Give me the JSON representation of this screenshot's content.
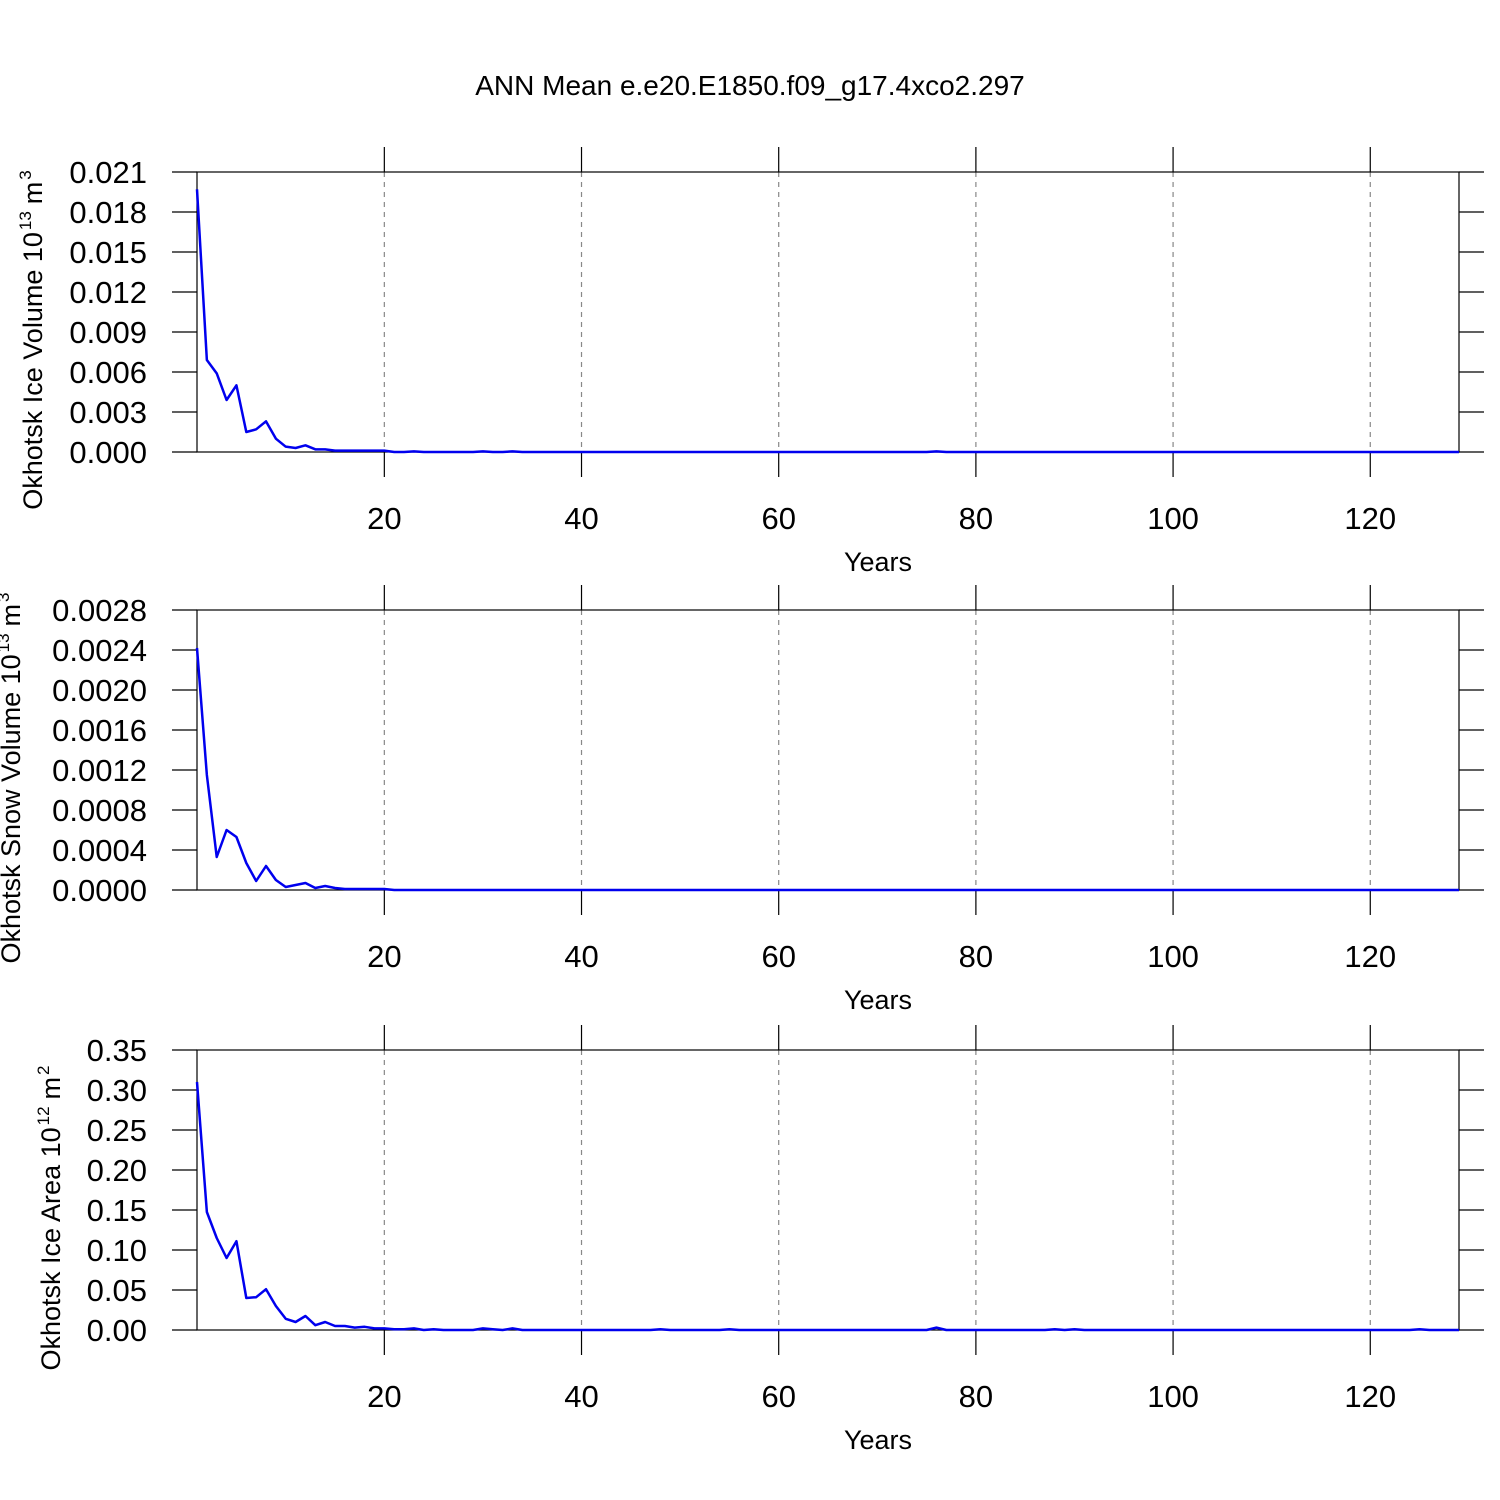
{
  "title": "ANN Mean e.e20.E1850.f09_g17.4xco2.297",
  "chart_data": [
    {
      "type": "line",
      "ylabel": [
        "Okhotsk Ice Volume 10",
        "13",
        "m",
        "3"
      ],
      "xlabel": "Years",
      "x": [
        1,
        2,
        3,
        4,
        5,
        6,
        7,
        8,
        9,
        10,
        11,
        12,
        13,
        14,
        15,
        16,
        17,
        18,
        19,
        20,
        21,
        22,
        23,
        24,
        25,
        26,
        27,
        28,
        29,
        30,
        31,
        32,
        33,
        34,
        35,
        36,
        37,
        38,
        39,
        40,
        41,
        42,
        43,
        44,
        45,
        46,
        47,
        48,
        49,
        50,
        51,
        52,
        53,
        54,
        55,
        56,
        57,
        58,
        59,
        60,
        61,
        62,
        63,
        64,
        65,
        66,
        67,
        68,
        69,
        70,
        71,
        72,
        73,
        74,
        75,
        76,
        77,
        78,
        79,
        80,
        81,
        82,
        83,
        84,
        85,
        86,
        87,
        88,
        89,
        90,
        91,
        92,
        93,
        94,
        95,
        96,
        97,
        98,
        99,
        100,
        101,
        102,
        103,
        104,
        105,
        106,
        107,
        108,
        109,
        110,
        111,
        112,
        113,
        114,
        115,
        116,
        117,
        118,
        119,
        120,
        121,
        122,
        123,
        124,
        125,
        126,
        127,
        128,
        129
      ],
      "series": [
        {
          "color": "#0000ee",
          "values": [
            0.0197,
            0.0069,
            0.0059,
            0.0039,
            0.005,
            0.0015,
            0.0017,
            0.0023,
            0.001,
            0.0004,
            0.0003,
            0.0005,
            0.0002,
            0.0002,
            0.0001,
            0.0001,
            0.0001,
            0.0001,
            0.0001,
            0.0001,
            0,
            0,
            5e-05,
            0,
            0,
            0,
            0,
            0,
            0,
            5e-05,
            0,
            0,
            5e-05,
            0,
            0,
            0,
            0,
            0,
            0,
            0,
            0,
            0,
            0,
            0,
            0,
            0,
            0,
            0,
            0,
            0,
            0,
            0,
            0,
            0,
            0,
            0,
            0,
            0,
            0,
            0,
            0,
            0,
            0,
            0,
            0,
            0,
            0,
            0,
            0,
            0,
            0,
            0,
            0,
            0,
            0,
            5e-05,
            0,
            0,
            0,
            0,
            0,
            0,
            0,
            0,
            0,
            0,
            0,
            0,
            0,
            0,
            0,
            0,
            0,
            0,
            0,
            0,
            0,
            0,
            0,
            0,
            0,
            0,
            0,
            0,
            0,
            0,
            0,
            0,
            0,
            0,
            0,
            0,
            0,
            0,
            0,
            0,
            0,
            0,
            0,
            0,
            0,
            0,
            0,
            0,
            0,
            0,
            0,
            0,
            0
          ]
        }
      ],
      "xlim": [
        1,
        129
      ],
      "xticks": [
        20,
        40,
        60,
        80,
        100,
        120
      ],
      "ylim": [
        0,
        0.021
      ],
      "yticks": [
        {
          "value": 0,
          "label": "0.000"
        },
        {
          "value": 0.003,
          "label": "0.003"
        },
        {
          "value": 0.006,
          "label": "0.006"
        },
        {
          "value": 0.009,
          "label": "0.009"
        },
        {
          "value": 0.012,
          "label": "0.012"
        },
        {
          "value": 0.015,
          "label": "0.015"
        },
        {
          "value": 0.018,
          "label": "0.018"
        },
        {
          "value": 0.021,
          "label": "0.021"
        }
      ],
      "grid": true
    },
    {
      "type": "line",
      "ylabel": [
        "Okhotsk Snow Volume 10",
        "13",
        "m",
        "3"
      ],
      "xlabel": "Years",
      "x": [
        1,
        2,
        3,
        4,
        5,
        6,
        7,
        8,
        9,
        10,
        11,
        12,
        13,
        14,
        15,
        16,
        17,
        18,
        19,
        20,
        21,
        22,
        23,
        24,
        25,
        26,
        27,
        28,
        29,
        30,
        31,
        32,
        33,
        34,
        35,
        36,
        37,
        38,
        39,
        40,
        41,
        42,
        43,
        44,
        45,
        46,
        47,
        48,
        49,
        50,
        51,
        52,
        53,
        54,
        55,
        56,
        57,
        58,
        59,
        60,
        61,
        62,
        63,
        64,
        65,
        66,
        67,
        68,
        69,
        70,
        71,
        72,
        73,
        74,
        75,
        76,
        77,
        78,
        79,
        80,
        81,
        82,
        83,
        84,
        85,
        86,
        87,
        88,
        89,
        90,
        91,
        92,
        93,
        94,
        95,
        96,
        97,
        98,
        99,
        100,
        101,
        102,
        103,
        104,
        105,
        106,
        107,
        108,
        109,
        110,
        111,
        112,
        113,
        114,
        115,
        116,
        117,
        118,
        119,
        120,
        121,
        122,
        123,
        124,
        125,
        126,
        127,
        128,
        129
      ],
      "series": [
        {
          "color": "#0000ee",
          "values": [
            0.00242,
            0.00115,
            0.00033,
            0.0006,
            0.00053,
            0.00027,
            9e-05,
            0.00024,
            0.0001,
            3e-05,
            5e-05,
            7e-05,
            2e-05,
            4e-05,
            2e-05,
            1e-05,
            1e-05,
            1e-05,
            1e-05,
            1e-05,
            0,
            0,
            0,
            0,
            0,
            0,
            0,
            0,
            0,
            0,
            0,
            0,
            0,
            0,
            0,
            0,
            0,
            0,
            0,
            0,
            0,
            0,
            0,
            0,
            0,
            0,
            0,
            0,
            0,
            0,
            0,
            0,
            0,
            0,
            0,
            0,
            0,
            0,
            0,
            0,
            0,
            0,
            0,
            0,
            0,
            0,
            0,
            0,
            0,
            0,
            0,
            0,
            0,
            0,
            0,
            0,
            0,
            0,
            0,
            0,
            0,
            0,
            0,
            0,
            0,
            0,
            0,
            0,
            0,
            0,
            0,
            0,
            0,
            0,
            0,
            0,
            0,
            0,
            0,
            0,
            0,
            0,
            0,
            0,
            0,
            0,
            0,
            0,
            0,
            0,
            0,
            0,
            0,
            0,
            0,
            0,
            0,
            0,
            0,
            0,
            0,
            0,
            0,
            0,
            0,
            0,
            0,
            0,
            0
          ]
        }
      ],
      "xlim": [
        1,
        129
      ],
      "xticks": [
        20,
        40,
        60,
        80,
        100,
        120
      ],
      "ylim": [
        0,
        0.0028
      ],
      "yticks": [
        {
          "value": 0,
          "label": "0.0000"
        },
        {
          "value": 0.0004,
          "label": "0.0004"
        },
        {
          "value": 0.0008,
          "label": "0.0008"
        },
        {
          "value": 0.0012,
          "label": "0.0012"
        },
        {
          "value": 0.0016,
          "label": "0.0016"
        },
        {
          "value": 0.002,
          "label": "0.0020"
        },
        {
          "value": 0.0024,
          "label": "0.0024"
        },
        {
          "value": 0.0028,
          "label": "0.0028"
        }
      ],
      "grid": true
    },
    {
      "type": "line",
      "ylabel": [
        "Okhotsk Ice Area 10",
        "12",
        "m",
        "2"
      ],
      "xlabel": "Years",
      "x": [
        1,
        2,
        3,
        4,
        5,
        6,
        7,
        8,
        9,
        10,
        11,
        12,
        13,
        14,
        15,
        16,
        17,
        18,
        19,
        20,
        21,
        22,
        23,
        24,
        25,
        26,
        27,
        28,
        29,
        30,
        31,
        32,
        33,
        34,
        35,
        36,
        37,
        38,
        39,
        40,
        41,
        42,
        43,
        44,
        45,
        46,
        47,
        48,
        49,
        50,
        51,
        52,
        53,
        54,
        55,
        56,
        57,
        58,
        59,
        60,
        61,
        62,
        63,
        64,
        65,
        66,
        67,
        68,
        69,
        70,
        71,
        72,
        73,
        74,
        75,
        76,
        77,
        78,
        79,
        80,
        81,
        82,
        83,
        84,
        85,
        86,
        87,
        88,
        89,
        90,
        91,
        92,
        93,
        94,
        95,
        96,
        97,
        98,
        99,
        100,
        101,
        102,
        103,
        104,
        105,
        106,
        107,
        108,
        109,
        110,
        111,
        112,
        113,
        114,
        115,
        116,
        117,
        118,
        119,
        120,
        121,
        122,
        123,
        124,
        125,
        126,
        127,
        128,
        129
      ],
      "series": [
        {
          "color": "#0000ee",
          "values": [
            0.31,
            0.1475,
            0.115,
            0.09,
            0.111,
            0.04,
            0.041,
            0.051,
            0.03,
            0.014,
            0.01,
            0.0175,
            0.006,
            0.01,
            0.005,
            0.005,
            0.003,
            0.004,
            0.002,
            0.002,
            0.001,
            0.001,
            0.002,
            0,
            0.001,
            0,
            0,
            0,
            0,
            0.002,
            0.001,
            0,
            0.002,
            0,
            0,
            0,
            0,
            0,
            0,
            0,
            0,
            0,
            0,
            0,
            0,
            0,
            0,
            0.001,
            0,
            0,
            0,
            0,
            0,
            0,
            0.001,
            0,
            0,
            0,
            0,
            0,
            0,
            0,
            0,
            0,
            0,
            0,
            0,
            0,
            0,
            0,
            0,
            0,
            0,
            0,
            0,
            0.003,
            0,
            0,
            0,
            0,
            0,
            0,
            0,
            0,
            0,
            0,
            0,
            0.001,
            0,
            0.001,
            0,
            0,
            0,
            0,
            0,
            0,
            0,
            0,
            0,
            0,
            0,
            0,
            0,
            0,
            0,
            0,
            0,
            0,
            0,
            0,
            0,
            0,
            0,
            0,
            0,
            0,
            0,
            0,
            0,
            0,
            0,
            0,
            0,
            0,
            0.001,
            0,
            0,
            0,
            0
          ]
        }
      ],
      "xlim": [
        1,
        129
      ],
      "xticks": [
        20,
        40,
        60,
        80,
        100,
        120
      ],
      "ylim": [
        0,
        0.35
      ],
      "yticks": [
        {
          "value": 0,
          "label": "0.00"
        },
        {
          "value": 0.05,
          "label": "0.05"
        },
        {
          "value": 0.1,
          "label": "0.10"
        },
        {
          "value": 0.15,
          "label": "0.15"
        },
        {
          "value": 0.2,
          "label": "0.20"
        },
        {
          "value": 0.25,
          "label": "0.25"
        },
        {
          "value": 0.3,
          "label": "0.30"
        },
        {
          "value": 0.35,
          "label": "0.35"
        }
      ],
      "grid": true
    }
  ]
}
